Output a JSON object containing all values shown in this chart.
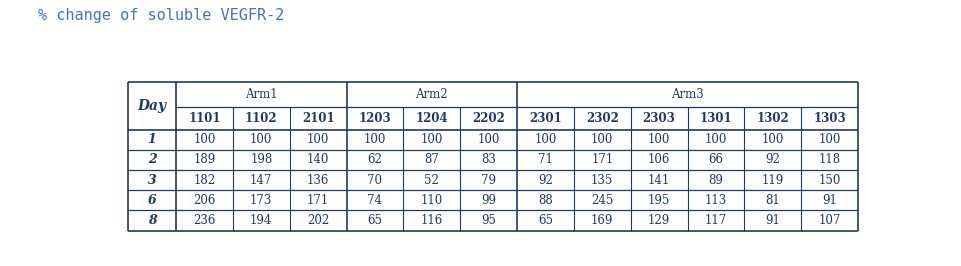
{
  "title": "% change of soluble VEGFR-2",
  "title_color": "#4472C4",
  "title_fontsize": 11,
  "arms": [
    "Arm1",
    "Arm2",
    "Arm3"
  ],
  "subjects": [
    "1101",
    "1102",
    "2101",
    "1203",
    "1204",
    "2202",
    "2301",
    "2302",
    "2303",
    "1301",
    "1302",
    "1303"
  ],
  "days": [
    "1",
    "2",
    "3",
    "6",
    "8"
  ],
  "data": [
    [
      100,
      100,
      100,
      100,
      100,
      100,
      100,
      100,
      100,
      100,
      100,
      100
    ],
    [
      189,
      198,
      140,
      62,
      87,
      83,
      71,
      171,
      106,
      66,
      92,
      118
    ],
    [
      182,
      147,
      136,
      70,
      52,
      79,
      92,
      135,
      141,
      89,
      119,
      150
    ],
    [
      206,
      173,
      171,
      74,
      110,
      99,
      88,
      245,
      195,
      113,
      81,
      91
    ],
    [
      236,
      194,
      202,
      65,
      116,
      95,
      65,
      169,
      129,
      117,
      91,
      107
    ]
  ],
  "header_text_color": "#1F3864",
  "data_text_color": "#1F3864",
  "border_color": "#1F3864",
  "background_color": "#FFFFFF",
  "figsize": [
    9.62,
    2.66
  ],
  "dpi": 100,
  "arm_col_ranges": [
    [
      1,
      3
    ],
    [
      4,
      6
    ],
    [
      7,
      12
    ]
  ],
  "arm_sep_after_cols": [
    3,
    6
  ]
}
